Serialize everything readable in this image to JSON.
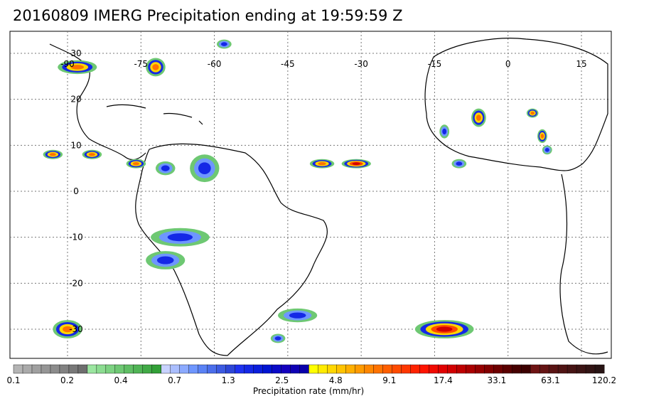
{
  "title": "20160809 IMERG Precipitation ending at 19:59:59 Z",
  "map": {
    "lon_range": [
      -100,
      15
    ],
    "lat_range": [
      -35,
      35
    ],
    "lon_ticks": [
      {
        "value": -90,
        "label": "-90"
      },
      {
        "value": -75,
        "label": "-75"
      },
      {
        "value": -60,
        "label": "-60"
      },
      {
        "value": -45,
        "label": "-45"
      },
      {
        "value": -30,
        "label": "-30"
      },
      {
        "value": -15,
        "label": "-15"
      },
      {
        "value": 0,
        "label": "0"
      },
      {
        "value": 15,
        "label": "15"
      }
    ],
    "lat_ticks": [
      {
        "value": 30,
        "label": "30"
      },
      {
        "value": 20,
        "label": "20"
      },
      {
        "value": 10,
        "label": "10"
      },
      {
        "value": 0,
        "label": "0"
      },
      {
        "value": -10,
        "label": "-10"
      },
      {
        "value": -20,
        "label": "-20"
      },
      {
        "value": -30,
        "label": "-30"
      }
    ],
    "grid": true,
    "grid_style": "dotted",
    "precip_cells": [
      {
        "lon": -88,
        "lat": 27,
        "rx": 4,
        "ry": 1.5,
        "level": "orange"
      },
      {
        "lon": -72,
        "lat": 27,
        "rx": 2,
        "ry": 2,
        "level": "orange"
      },
      {
        "lon": -58,
        "lat": 32,
        "rx": 1.5,
        "ry": 1,
        "level": "blue"
      },
      {
        "lon": -93,
        "lat": 8,
        "rx": 2,
        "ry": 1,
        "level": "orange"
      },
      {
        "lon": -85,
        "lat": 8,
        "rx": 2,
        "ry": 1,
        "level": "orange"
      },
      {
        "lon": -76,
        "lat": 6,
        "rx": 2,
        "ry": 1,
        "level": "orange"
      },
      {
        "lon": -70,
        "lat": 5,
        "rx": 2,
        "ry": 1.5,
        "level": "blue"
      },
      {
        "lon": -62,
        "lat": 5,
        "rx": 3,
        "ry": 3,
        "level": "blue"
      },
      {
        "lon": -67,
        "lat": -10,
        "rx": 6,
        "ry": 2,
        "level": "blue"
      },
      {
        "lon": -70,
        "lat": -15,
        "rx": 4,
        "ry": 2,
        "level": "blue"
      },
      {
        "lon": -38,
        "lat": 6,
        "rx": 2.5,
        "ry": 1,
        "level": "orange"
      },
      {
        "lon": -31,
        "lat": 6,
        "rx": 3,
        "ry": 1,
        "level": "red"
      },
      {
        "lon": -10,
        "lat": 6,
        "rx": 1.5,
        "ry": 1,
        "level": "blue"
      },
      {
        "lon": -6,
        "lat": 16,
        "rx": 1.5,
        "ry": 2,
        "level": "orange"
      },
      {
        "lon": -13,
        "lat": 13,
        "rx": 1,
        "ry": 1.5,
        "level": "blue"
      },
      {
        "lon": 5,
        "lat": 17,
        "rx": 1.2,
        "ry": 1,
        "level": "orange"
      },
      {
        "lon": 7,
        "lat": 12,
        "rx": 1,
        "ry": 1.5,
        "level": "orange"
      },
      {
        "lon": 8,
        "lat": 9,
        "rx": 1,
        "ry": 1,
        "level": "blue"
      },
      {
        "lon": -90,
        "lat": -30,
        "rx": 3,
        "ry": 2,
        "level": "orange"
      },
      {
        "lon": -43,
        "lat": -27,
        "rx": 4,
        "ry": 1.5,
        "level": "blue"
      },
      {
        "lon": -47,
        "lat": -32,
        "rx": 1.5,
        "ry": 1,
        "level": "blue"
      },
      {
        "lon": -13,
        "lat": -30,
        "rx": 6,
        "ry": 2,
        "level": "red"
      }
    ]
  },
  "colorbar": {
    "title": "Precipitation rate (mm/hr)",
    "labels": [
      "0.1",
      "0.2",
      "0.4",
      "0.7",
      "1.3",
      "2.5",
      "4.8",
      "9.1",
      "17.4",
      "33.1",
      "63.1",
      "120.2"
    ],
    "colors": [
      "#b4b4b4",
      "#aaaaaa",
      "#a0a0a0",
      "#969696",
      "#8c8c8c",
      "#828282",
      "#787878",
      "#6e6e6e",
      "#9be6a0",
      "#8cdc91",
      "#7dd282",
      "#6ec873",
      "#5fbe64",
      "#50b455",
      "#41aa46",
      "#32a037",
      "#c8d2ff",
      "#aabeff",
      "#8caaff",
      "#6e96ff",
      "#5a82f5",
      "#4b6eeb",
      "#3c5ae1",
      "#2d46d7",
      "#1e32f0",
      "#1428e6",
      "#0a1edc",
      "#0014d2",
      "#0a0ac8",
      "#1400be",
      "#0f00b4",
      "#0a00aa",
      "#ffff00",
      "#ffeb00",
      "#ffd700",
      "#ffc300",
      "#ffaf00",
      "#ff9b00",
      "#ff8700",
      "#ff7300",
      "#ff5f00",
      "#ff4b00",
      "#ff3700",
      "#ff2300",
      "#ff1400",
      "#f00a00",
      "#e10000",
      "#d20000",
      "#be0000",
      "#aa0000",
      "#960000",
      "#820000",
      "#6e0000",
      "#5a0000",
      "#460000",
      "#3c0000",
      "#6e1414",
      "#641414",
      "#5a1414",
      "#501414",
      "#461414",
      "#3c1414",
      "#321414",
      "#281414"
    ]
  }
}
